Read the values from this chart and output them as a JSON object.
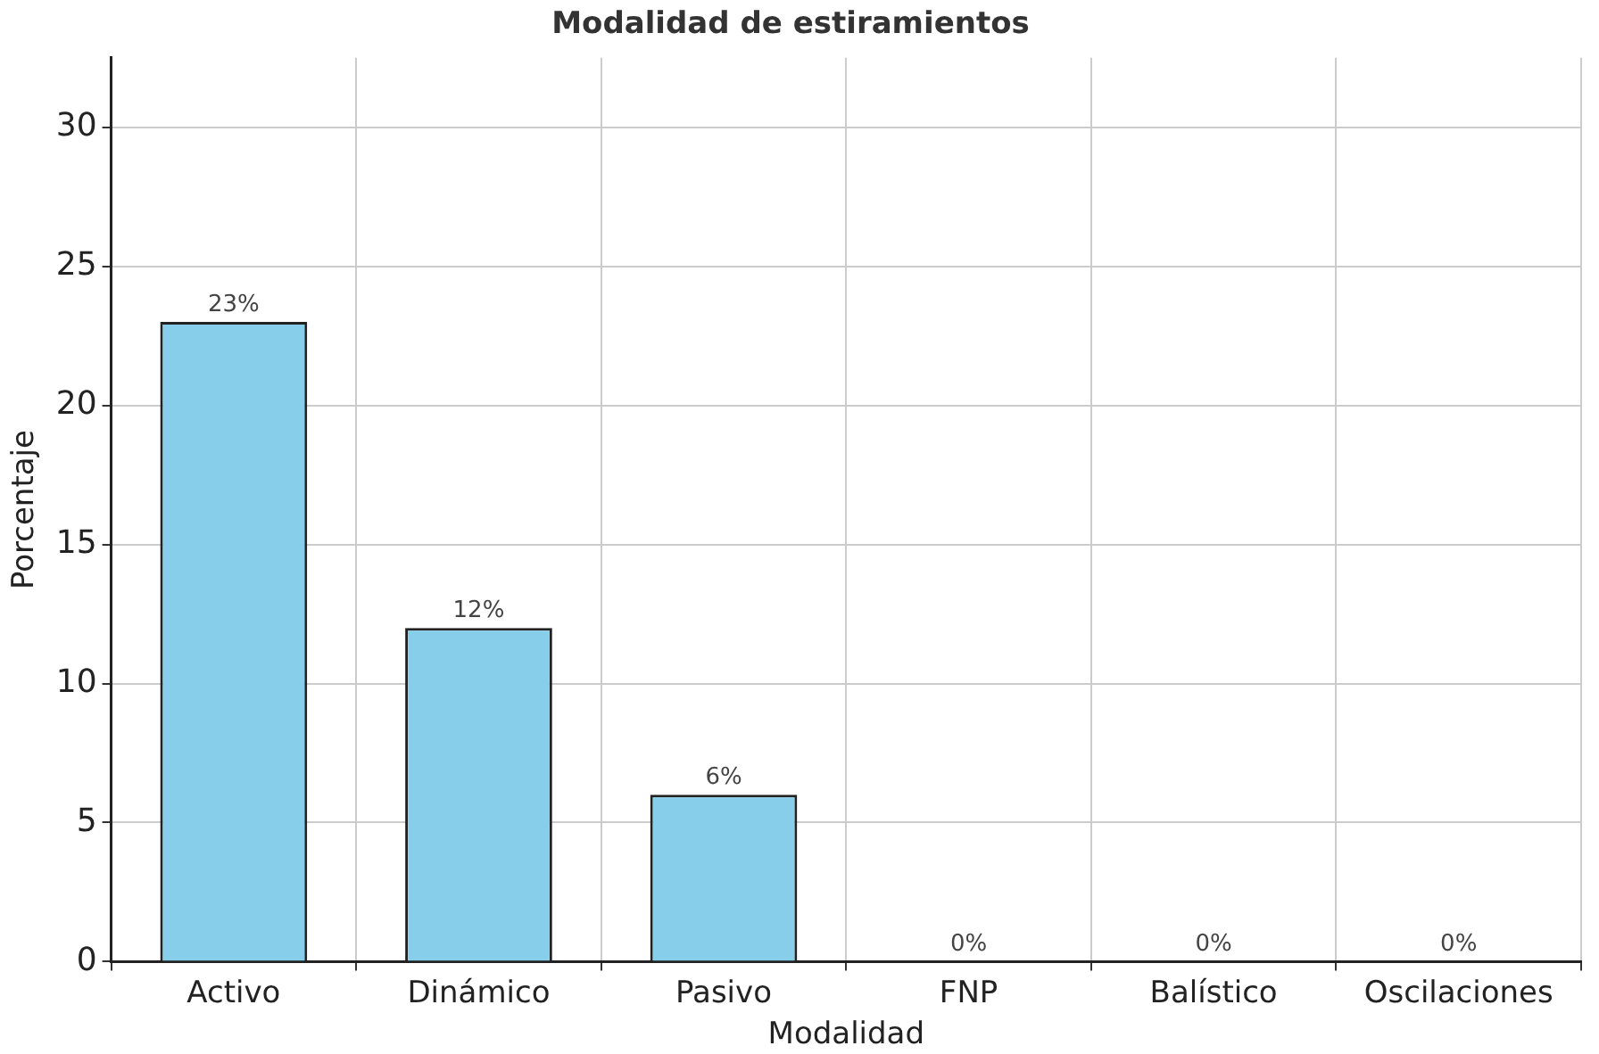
{
  "chart_data": {
    "type": "bar",
    "title": "Modalidad de estiramientos",
    "xlabel": "Modalidad",
    "ylabel": "Porcentaje",
    "categories": [
      "Activo",
      "Dinámico",
      "Pasivo",
      "FNP",
      "Balístico",
      "Oscilaciones"
    ],
    "values": [
      23,
      12,
      6,
      0,
      0,
      0
    ],
    "value_labels": [
      "23%",
      "12%",
      "6%",
      "0%",
      "0%",
      "0%"
    ],
    "color": "#87ceeb",
    "ylim": [
      0,
      32.5
    ],
    "yticks": [
      0,
      5,
      10,
      15,
      20,
      25,
      30
    ],
    "grid": true,
    "legend": false
  }
}
